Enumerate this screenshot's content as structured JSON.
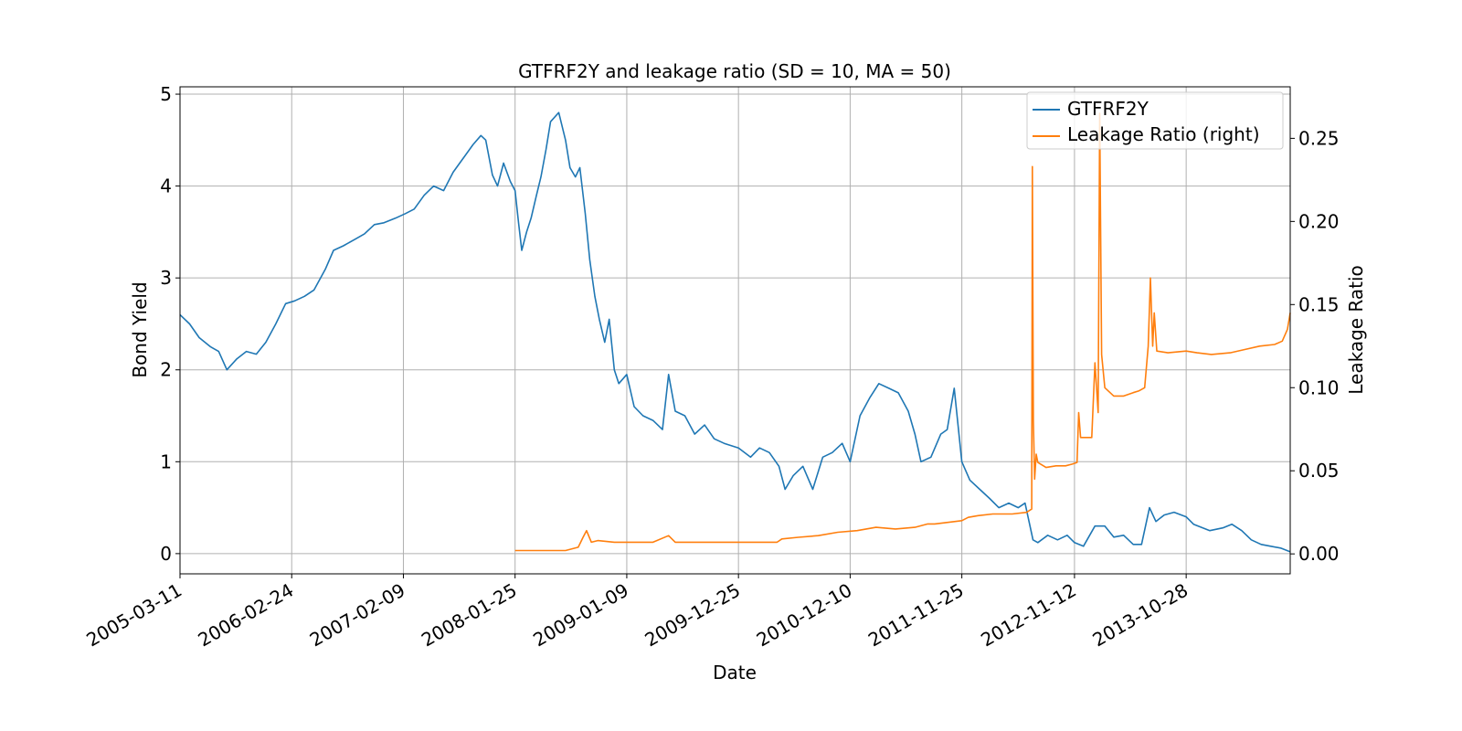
{
  "chart_data": {
    "type": "line",
    "title": "GTFRF2Y and leakage ratio (SD = 10, MA = 50)",
    "xlabel": "Date",
    "ylabel": "Bond Yield",
    "ylabel_right": "Leakage Ratio",
    "x_tick_labels": [
      "2005-03-11",
      "2006-02-24",
      "2007-02-09",
      "2008-01-25",
      "2009-01-09",
      "2009-12-25",
      "2010-12-10",
      "2011-11-25",
      "2012-11-12",
      "2013-10-28"
    ],
    "y_ticks_left": [
      "0",
      "1",
      "2",
      "3",
      "4",
      "5"
    ],
    "y_ticks_right": [
      "0.00",
      "0.05",
      "0.10",
      "0.15",
      "0.20",
      "0.25"
    ],
    "xlim": [
      "2005-03-11",
      "2014-09-19"
    ],
    "ylim_left": [
      -0.22,
      5.08
    ],
    "ylim_right": [
      -0.012,
      0.281
    ],
    "grid": true,
    "legend_position": "top-right",
    "series": [
      {
        "name": "GTFRF2Y",
        "axis": "left",
        "color": "#1f77b4",
        "points": [
          [
            "2005-03-11",
            2.6
          ],
          [
            "2005-04-10",
            2.5
          ],
          [
            "2005-05-10",
            2.35
          ],
          [
            "2005-06-15",
            2.25
          ],
          [
            "2005-07-10",
            2.2
          ],
          [
            "2005-08-05",
            2.0
          ],
          [
            "2005-09-05",
            2.12
          ],
          [
            "2005-10-05",
            2.2
          ],
          [
            "2005-11-05",
            2.17
          ],
          [
            "2005-12-05",
            2.3
          ],
          [
            "2006-01-05",
            2.5
          ],
          [
            "2006-02-05",
            2.72
          ],
          [
            "2006-03-05",
            2.75
          ],
          [
            "2006-04-05",
            2.8
          ],
          [
            "2006-05-05",
            2.87
          ],
          [
            "2006-06-10",
            3.1
          ],
          [
            "2006-07-05",
            3.3
          ],
          [
            "2006-08-05",
            3.35
          ],
          [
            "2006-09-10",
            3.42
          ],
          [
            "2006-10-10",
            3.48
          ],
          [
            "2006-11-10",
            3.58
          ],
          [
            "2006-12-10",
            3.6
          ],
          [
            "2007-01-15",
            3.65
          ],
          [
            "2007-02-15",
            3.7
          ],
          [
            "2007-03-15",
            3.75
          ],
          [
            "2007-04-15",
            3.9
          ],
          [
            "2007-05-15",
            4.0
          ],
          [
            "2007-06-15",
            3.95
          ],
          [
            "2007-07-15",
            4.15
          ],
          [
            "2007-08-15",
            4.3
          ],
          [
            "2007-09-15",
            4.45
          ],
          [
            "2007-10-10",
            4.55
          ],
          [
            "2007-10-25",
            4.5
          ],
          [
            "2007-11-15",
            4.12
          ],
          [
            "2007-12-01",
            4.0
          ],
          [
            "2007-12-20",
            4.25
          ],
          [
            "2008-01-10",
            4.05
          ],
          [
            "2008-01-25",
            3.95
          ],
          [
            "2008-02-05",
            3.6
          ],
          [
            "2008-02-15",
            3.3
          ],
          [
            "2008-03-01",
            3.5
          ],
          [
            "2008-03-15",
            3.65
          ],
          [
            "2008-04-01",
            3.9
          ],
          [
            "2008-04-15",
            4.1
          ],
          [
            "2008-05-01",
            4.4
          ],
          [
            "2008-05-15",
            4.7
          ],
          [
            "2008-06-10",
            4.8
          ],
          [
            "2008-07-01",
            4.5
          ],
          [
            "2008-07-15",
            4.2
          ],
          [
            "2008-08-01",
            4.1
          ],
          [
            "2008-08-15",
            4.2
          ],
          [
            "2008-09-01",
            3.7
          ],
          [
            "2008-09-15",
            3.2
          ],
          [
            "2008-10-01",
            2.8
          ],
          [
            "2008-10-15",
            2.55
          ],
          [
            "2008-11-01",
            2.3
          ],
          [
            "2008-11-15",
            2.55
          ],
          [
            "2008-12-01",
            2.0
          ],
          [
            "2008-12-15",
            1.85
          ],
          [
            "2009-01-09",
            1.95
          ],
          [
            "2009-02-01",
            1.6
          ],
          [
            "2009-03-01",
            1.5
          ],
          [
            "2009-04-01",
            1.45
          ],
          [
            "2009-05-01",
            1.35
          ],
          [
            "2009-05-20",
            1.95
          ],
          [
            "2009-06-10",
            1.55
          ],
          [
            "2009-07-10",
            1.5
          ],
          [
            "2009-08-10",
            1.3
          ],
          [
            "2009-09-10",
            1.4
          ],
          [
            "2009-10-10",
            1.25
          ],
          [
            "2009-11-10",
            1.2
          ],
          [
            "2009-12-25",
            1.15
          ],
          [
            "2010-02-01",
            1.05
          ],
          [
            "2010-03-01",
            1.15
          ],
          [
            "2010-04-01",
            1.1
          ],
          [
            "2010-05-01",
            0.95
          ],
          [
            "2010-05-20",
            0.7
          ],
          [
            "2010-06-15",
            0.85
          ],
          [
            "2010-07-15",
            0.95
          ],
          [
            "2010-08-15",
            0.7
          ],
          [
            "2010-09-15",
            1.05
          ],
          [
            "2010-10-15",
            1.1
          ],
          [
            "2010-11-15",
            1.2
          ],
          [
            "2010-12-10",
            1.0
          ],
          [
            "2011-01-10",
            1.5
          ],
          [
            "2011-02-10",
            1.7
          ],
          [
            "2011-03-10",
            1.85
          ],
          [
            "2011-04-10",
            1.8
          ],
          [
            "2011-05-10",
            1.75
          ],
          [
            "2011-06-10",
            1.55
          ],
          [
            "2011-07-01",
            1.3
          ],
          [
            "2011-07-20",
            1.0
          ],
          [
            "2011-08-20",
            1.05
          ],
          [
            "2011-09-20",
            1.3
          ],
          [
            "2011-10-10",
            1.35
          ],
          [
            "2011-11-01",
            1.8
          ],
          [
            "2011-11-25",
            1.0
          ],
          [
            "2011-12-20",
            0.8
          ],
          [
            "2012-01-20",
            0.7
          ],
          [
            "2012-02-20",
            0.6
          ],
          [
            "2012-03-20",
            0.5
          ],
          [
            "2012-04-20",
            0.55
          ],
          [
            "2012-05-20",
            0.5
          ],
          [
            "2012-06-10",
            0.55
          ],
          [
            "2012-07-05",
            0.15
          ],
          [
            "2012-07-20",
            0.12
          ],
          [
            "2012-08-20",
            0.2
          ],
          [
            "2012-09-20",
            0.15
          ],
          [
            "2012-10-20",
            0.2
          ],
          [
            "2012-11-12",
            0.12
          ],
          [
            "2012-12-10",
            0.08
          ],
          [
            "2013-01-15",
            0.3
          ],
          [
            "2013-02-15",
            0.3
          ],
          [
            "2013-03-15",
            0.18
          ],
          [
            "2013-04-15",
            0.2
          ],
          [
            "2013-05-15",
            0.1
          ],
          [
            "2013-06-10",
            0.1
          ],
          [
            "2013-07-05",
            0.5
          ],
          [
            "2013-07-25",
            0.35
          ],
          [
            "2013-08-20",
            0.42
          ],
          [
            "2013-09-20",
            0.45
          ],
          [
            "2013-10-28",
            0.4
          ],
          [
            "2013-11-20",
            0.32
          ],
          [
            "2014-01-10",
            0.25
          ],
          [
            "2014-02-20",
            0.28
          ],
          [
            "2014-03-20",
            0.32
          ],
          [
            "2014-04-20",
            0.25
          ],
          [
            "2014-05-20",
            0.15
          ],
          [
            "2014-06-20",
            0.1
          ],
          [
            "2014-07-20",
            0.08
          ],
          [
            "2014-08-20",
            0.06
          ],
          [
            "2014-09-19",
            0.02
          ]
        ]
      },
      {
        "name": "Leakage Ratio (right)",
        "axis": "right",
        "color": "#ff7f0e",
        "points": [
          [
            "2008-01-25",
            0.002
          ],
          [
            "2008-03-01",
            0.002
          ],
          [
            "2008-05-01",
            0.002
          ],
          [
            "2008-07-01",
            0.002
          ],
          [
            "2008-08-10",
            0.004
          ],
          [
            "2008-08-25",
            0.01
          ],
          [
            "2008-09-05",
            0.014
          ],
          [
            "2008-09-20",
            0.007
          ],
          [
            "2008-10-10",
            0.008
          ],
          [
            "2008-12-01",
            0.007
          ],
          [
            "2009-02-01",
            0.007
          ],
          [
            "2009-04-01",
            0.007
          ],
          [
            "2009-05-20",
            0.011
          ],
          [
            "2009-06-10",
            0.007
          ],
          [
            "2009-09-01",
            0.007
          ],
          [
            "2009-12-25",
            0.007
          ],
          [
            "2010-03-01",
            0.007
          ],
          [
            "2010-04-25",
            0.007
          ],
          [
            "2010-05-10",
            0.009
          ],
          [
            "2010-07-01",
            0.01
          ],
          [
            "2010-09-01",
            0.011
          ],
          [
            "2010-11-01",
            0.013
          ],
          [
            "2011-01-01",
            0.014
          ],
          [
            "2011-03-01",
            0.016
          ],
          [
            "2011-05-01",
            0.015
          ],
          [
            "2011-07-01",
            0.016
          ],
          [
            "2011-08-10",
            0.018
          ],
          [
            "2011-09-01",
            0.018
          ],
          [
            "2011-11-25",
            0.02
          ],
          [
            "2011-12-15",
            0.022
          ],
          [
            "2012-01-15",
            0.023
          ],
          [
            "2012-03-01",
            0.024
          ],
          [
            "2012-05-01",
            0.024
          ],
          [
            "2012-06-15",
            0.025
          ],
          [
            "2012-07-01",
            0.027
          ],
          [
            "2012-07-03",
            0.233
          ],
          [
            "2012-07-06",
            0.08
          ],
          [
            "2012-07-10",
            0.045
          ],
          [
            "2012-07-15",
            0.06
          ],
          [
            "2012-07-20",
            0.055
          ],
          [
            "2012-08-15",
            0.052
          ],
          [
            "2012-09-15",
            0.053
          ],
          [
            "2012-10-15",
            0.053
          ],
          [
            "2012-11-05",
            0.054
          ],
          [
            "2012-11-20",
            0.055
          ],
          [
            "2012-11-25",
            0.085
          ],
          [
            "2012-12-01",
            0.07
          ],
          [
            "2012-12-15",
            0.07
          ],
          [
            "2013-01-05",
            0.07
          ],
          [
            "2013-01-15",
            0.115
          ],
          [
            "2013-01-25",
            0.085
          ],
          [
            "2013-01-30",
            0.265
          ],
          [
            "2013-02-05",
            0.12
          ],
          [
            "2013-02-15",
            0.1
          ],
          [
            "2013-03-15",
            0.095
          ],
          [
            "2013-04-15",
            0.095
          ],
          [
            "2013-05-15",
            0.097
          ],
          [
            "2013-06-01",
            0.098
          ],
          [
            "2013-06-20",
            0.1
          ],
          [
            "2013-07-01",
            0.125
          ],
          [
            "2013-07-08",
            0.166
          ],
          [
            "2013-07-15",
            0.125
          ],
          [
            "2013-07-20",
            0.145
          ],
          [
            "2013-07-28",
            0.122
          ],
          [
            "2013-09-01",
            0.121
          ],
          [
            "2013-10-28",
            0.122
          ],
          [
            "2013-12-01",
            0.121
          ],
          [
            "2014-01-15",
            0.12
          ],
          [
            "2014-03-15",
            0.121
          ],
          [
            "2014-05-01",
            0.123
          ],
          [
            "2014-06-15",
            0.125
          ],
          [
            "2014-08-01",
            0.126
          ],
          [
            "2014-08-25",
            0.128
          ],
          [
            "2014-09-10",
            0.135
          ],
          [
            "2014-09-19",
            0.145
          ]
        ]
      }
    ]
  }
}
